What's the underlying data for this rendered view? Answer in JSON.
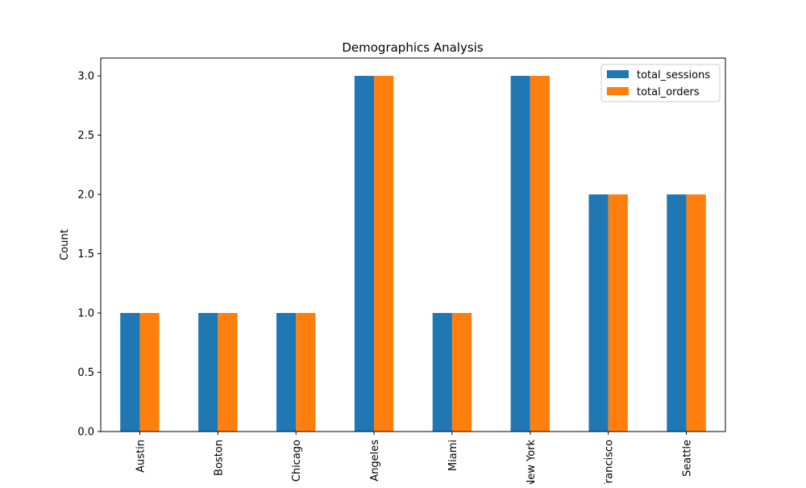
{
  "chart_data": {
    "type": "bar",
    "title": "Demographics Analysis",
    "xlabel": "",
    "ylabel": "Count",
    "categories": [
      "Austin",
      "Boston",
      "Chicago",
      "Los Angeles",
      "Miami",
      "New York",
      "San Francisco",
      "Seattle"
    ],
    "series": [
      {
        "name": "total_sessions",
        "color": "#1f77b4",
        "values": [
          1,
          1,
          1,
          3,
          1,
          3,
          2,
          2
        ]
      },
      {
        "name": "total_orders",
        "color": "#ff7f0e",
        "values": [
          1,
          1,
          1,
          3,
          1,
          3,
          2,
          2
        ]
      }
    ],
    "ylim": [
      0,
      3.15
    ],
    "yticks": [
      0.0,
      0.5,
      1.0,
      1.5,
      2.0,
      2.5,
      3.0
    ],
    "ytick_labels": [
      "0.0",
      "0.5",
      "1.0",
      "1.5",
      "2.0",
      "2.5",
      "3.0"
    ],
    "xtick_rotation": "vertical",
    "grid": false,
    "legend_position": "top-right"
  }
}
